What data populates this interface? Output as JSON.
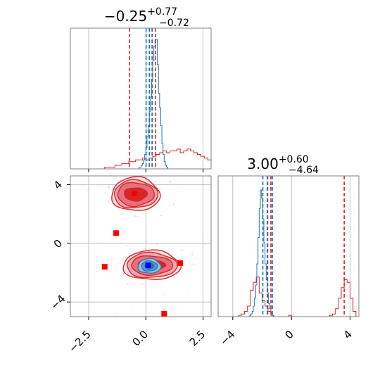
{
  "colors": {
    "red": "#d62728",
    "blue": "#1f77b4",
    "marker_red": "#ff0000",
    "marker_blue": "#0000ff",
    "grid": "#b0b0b0",
    "spine": "#808080"
  },
  "chart_data": [
    {
      "type": "histogram",
      "panel": "top-left marginal",
      "title": {
        "value": "−0.25",
        "upper": "+0.77",
        "lower": "−0.72"
      },
      "x_range": [
        -3.3,
        2.85
      ],
      "grid": true,
      "x_ticks": [
        -2.5,
        0.0,
        2.5
      ],
      "series": [
        {
          "color": "red",
          "bin_edges_start": -3.0,
          "bin_width": 0.15,
          "counts": [
            0,
            0,
            0,
            0,
            0,
            0,
            0,
            0,
            1,
            1,
            1,
            2,
            2,
            3,
            3,
            4,
            4,
            5,
            5,
            6,
            5,
            6,
            7,
            8,
            9,
            10,
            9,
            10,
            10,
            11,
            9,
            10,
            11,
            10,
            9,
            8,
            7,
            6,
            5,
            4,
            3,
            3,
            2,
            2,
            1,
            1,
            1,
            1,
            0,
            0
          ]
        },
        {
          "color": "blue",
          "bin_edges_start": -0.6,
          "bin_width": 0.05,
          "counts": [
            0,
            0,
            0,
            0,
            0,
            0,
            1,
            1,
            2,
            3,
            5,
            8,
            12,
            18,
            24,
            32,
            40,
            50,
            60,
            68,
            72,
            72,
            58,
            42,
            34,
            24,
            14,
            8,
            4,
            2,
            1,
            0
          ]
        }
      ],
      "vlines": [
        {
          "color": "red",
          "x": -0.72
        },
        {
          "color": "red",
          "x": 0.28
        },
        {
          "color": "red",
          "x": 0.42
        },
        {
          "color": "blue",
          "x": 0.01
        },
        {
          "color": "blue",
          "x": 0.15
        },
        {
          "color": "blue",
          "x": 0.27
        }
      ]
    },
    {
      "type": "contour",
      "panel": "bottom-left 2D",
      "x_range": [
        -3.3,
        2.85
      ],
      "y_range": [
        -5.0,
        4.6
      ],
      "grid": true,
      "x_ticks": [
        -2.5,
        0.0,
        2.5
      ],
      "x_tick_labels": [
        "−2.5",
        "0.0",
        "2.5"
      ],
      "y_ticks": [
        -4,
        0,
        4
      ],
      "y_tick_labels": [
        "−4",
        "0",
        "4"
      ],
      "red_modes": [
        {
          "cx": -0.45,
          "cy": 3.35,
          "rx": [
            1.05,
            0.95,
            0.8,
            0.5
          ],
          "ry": [
            1.15,
            0.95,
            0.8,
            0.45
          ]
        },
        {
          "cx": 0.25,
          "cy": -1.5,
          "rx": [
            1.25,
            1.1,
            0.9,
            0.6
          ],
          "ry": [
            1.0,
            0.85,
            0.65,
            0.35
          ]
        }
      ],
      "blue_mode": {
        "cx": 0.15,
        "cy": -1.55,
        "rx": [
          0.5,
          0.35,
          0.2
        ],
        "ry": [
          0.5,
          0.35,
          0.2
        ]
      },
      "markers": [
        {
          "color": "red",
          "x": -0.5,
          "y": 3.4
        },
        {
          "color": "red",
          "x": -1.3,
          "y": 0.7
        },
        {
          "color": "red",
          "x": -1.8,
          "y": -1.6
        },
        {
          "color": "red",
          "x": 1.5,
          "y": -1.35
        },
        {
          "color": "red",
          "x": 0.8,
          "y": -4.8
        },
        {
          "color": "blue",
          "x": 0.1,
          "y": -1.5
        }
      ]
    },
    {
      "type": "histogram",
      "panel": "bottom-right marginal",
      "title": {
        "value": "3.00",
        "upper": "+0.60",
        "lower": "−4.64"
      },
      "x_range": [
        -5.0,
        4.6
      ],
      "grid": true,
      "x_ticks": [
        -4,
        0,
        4
      ],
      "x_tick_labels": [
        "−4",
        "0",
        "4"
      ],
      "series": [
        {
          "color": "red",
          "bin_edges_start": -5.0,
          "bin_width": 0.2,
          "counts": [
            0,
            0,
            0,
            0,
            0,
            0,
            0,
            1,
            2,
            4,
            8,
            20,
            26,
            30,
            18,
            12,
            8,
            4,
            1,
            0,
            0,
            0,
            0,
            0,
            1,
            0,
            0,
            0,
            0,
            0,
            0,
            0,
            0,
            0,
            0,
            0,
            0,
            0,
            1,
            2,
            6,
            14,
            22,
            28,
            26,
            14,
            4,
            0
          ]
        },
        {
          "color": "blue",
          "bin_edges_start": -3.0,
          "bin_width": 0.08,
          "counts": [
            0,
            0,
            1,
            2,
            4,
            8,
            14,
            24,
            40,
            60,
            82,
            96,
            90,
            74,
            56,
            40,
            28,
            18,
            10,
            6,
            3,
            1,
            0,
            0,
            0
          ]
        }
      ],
      "vlines": [
        {
          "color": "red",
          "x": -1.65
        },
        {
          "color": "red",
          "x": -1.4
        },
        {
          "color": "red",
          "x": 3.6
        },
        {
          "color": "blue",
          "x": -1.95
        },
        {
          "color": "blue",
          "x": -1.62
        },
        {
          "color": "blue",
          "x": -1.3
        }
      ]
    }
  ]
}
